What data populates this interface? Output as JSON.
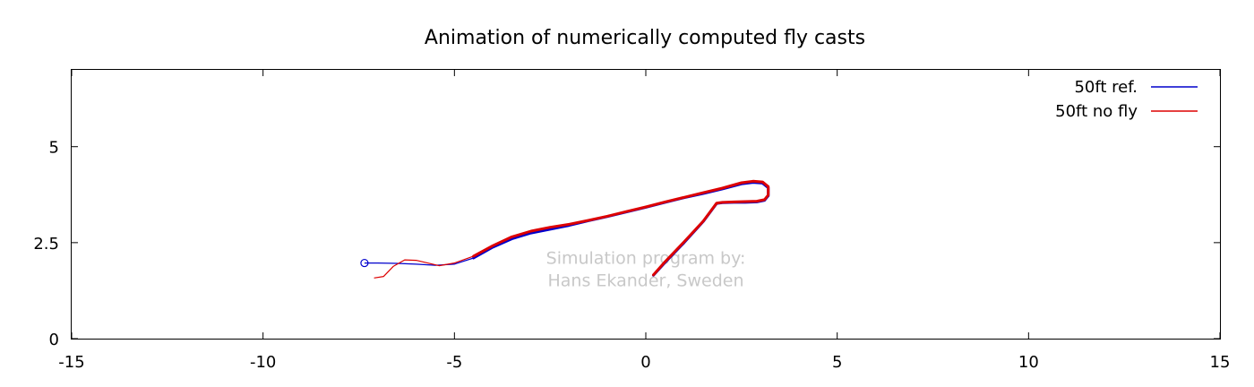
{
  "chart_data": {
    "type": "line",
    "title": "Animation of numerically computed fly casts",
    "xlabel": "",
    "ylabel": "",
    "xlim": [
      -15,
      15
    ],
    "ylim": [
      0,
      7
    ],
    "x_ticks": [
      -15,
      -10,
      -5,
      0,
      5,
      10,
      15
    ],
    "y_ticks": [
      0,
      2.5,
      5
    ],
    "y_tick_labels": [
      "0",
      "2.5",
      "5"
    ],
    "grid": false,
    "legend_position": "top-right",
    "annotation": [
      "Simulation program by:",
      "Hans Ekander, Sweden"
    ],
    "series": [
      {
        "name": "50ft ref.",
        "color": "#0000cc",
        "marker_at_start": "open-circle",
        "x": [
          -7.35,
          -7.0,
          -6.5,
          -6.0,
          -5.5,
          -5.0,
          -4.5,
          -4.0,
          -3.5,
          -3.0,
          -2.5,
          -2.0,
          -1.5,
          -1.0,
          -0.5,
          0.0,
          0.5,
          1.0,
          1.5,
          2.0,
          2.5,
          2.8,
          3.05,
          3.2,
          3.2,
          3.1,
          2.9,
          2.6,
          2.3,
          2.0,
          1.85,
          1.5,
          1.0,
          0.5,
          0.2
        ],
        "y": [
          1.97,
          1.97,
          1.96,
          1.94,
          1.91,
          1.94,
          2.1,
          2.38,
          2.6,
          2.75,
          2.85,
          2.95,
          3.07,
          3.18,
          3.3,
          3.42,
          3.55,
          3.67,
          3.78,
          3.9,
          4.03,
          4.07,
          4.05,
          3.93,
          3.72,
          3.6,
          3.56,
          3.55,
          3.55,
          3.54,
          3.52,
          3.05,
          2.5,
          1.98,
          1.65
        ],
        "thick_from_index": 6
      },
      {
        "name": "50ft no fly",
        "color": "#dd0000",
        "x": [
          -7.1,
          -6.85,
          -6.6,
          -6.3,
          -6.0,
          -5.7,
          -5.4,
          -5.0,
          -4.5,
          -4.0,
          -3.5,
          -3.0,
          -2.5,
          -2.0,
          -1.5,
          -1.0,
          -0.5,
          0.0,
          0.5,
          1.0,
          1.5,
          2.0,
          2.5,
          2.8,
          3.05,
          3.2,
          3.2,
          3.1,
          2.9,
          2.6,
          2.3,
          2.0,
          1.85,
          1.5,
          1.0,
          0.5,
          0.2
        ],
        "y": [
          1.58,
          1.62,
          1.88,
          2.05,
          2.04,
          1.97,
          1.9,
          1.97,
          2.15,
          2.42,
          2.65,
          2.8,
          2.9,
          2.98,
          3.08,
          3.19,
          3.31,
          3.43,
          3.56,
          3.68,
          3.8,
          3.92,
          4.06,
          4.1,
          4.08,
          3.96,
          3.74,
          3.62,
          3.58,
          3.57,
          3.56,
          3.55,
          3.53,
          3.06,
          2.52,
          2.0,
          1.66
        ],
        "thick_from_index": 8
      }
    ]
  }
}
